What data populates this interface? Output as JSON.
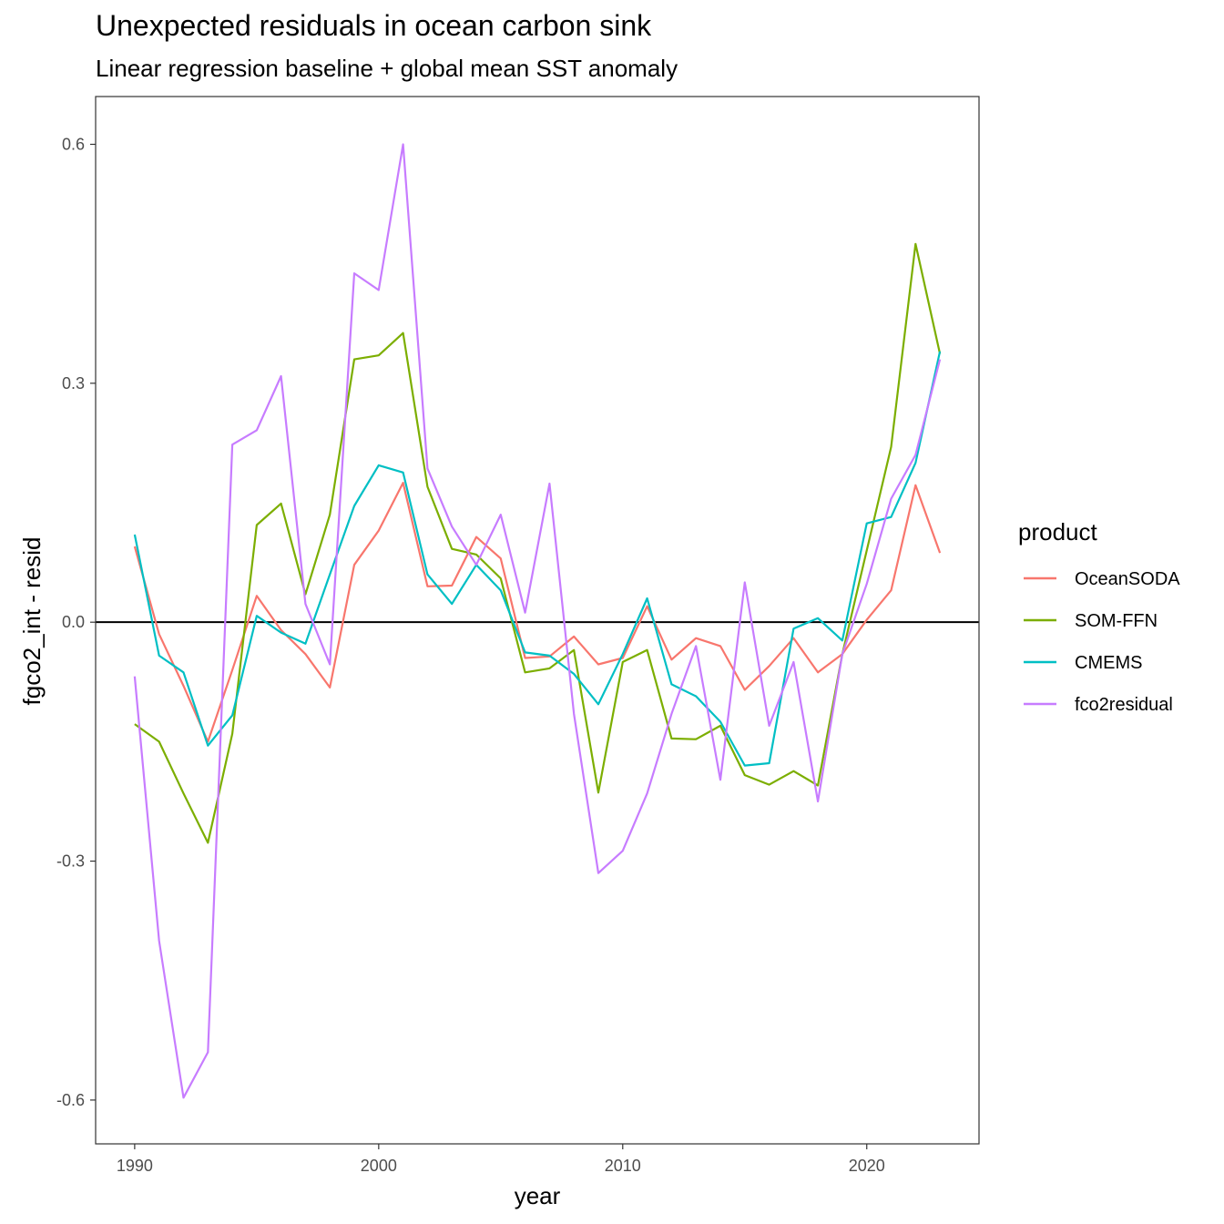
{
  "chart_data": {
    "type": "line",
    "title": "Unexpected residuals in ocean carbon sink",
    "subtitle": "Linear regression baseline + global mean SST anomaly",
    "xlabel": "year",
    "ylabel": "fgco2_int - resid",
    "xlim": [
      1988.4,
      2024.6
    ],
    "ylim": [
      -0.655,
      0.66
    ],
    "x_ticks": [
      1990,
      2000,
      2010,
      2020
    ],
    "y_ticks": [
      0.6,
      0.3,
      0.0,
      -0.3,
      -0.6
    ],
    "y_tick_labels": [
      "0.6",
      "0.3",
      "0.0",
      "-0.3",
      "-0.6"
    ],
    "zero_line": true,
    "grid": false,
    "legend_title": "product",
    "legend_position": "right",
    "x": [
      1990,
      1991,
      1992,
      1993,
      1994,
      1995,
      1996,
      1997,
      1998,
      1999,
      2000,
      2001,
      2002,
      2003,
      2004,
      2005,
      2006,
      2007,
      2008,
      2009,
      2010,
      2011,
      2012,
      2013,
      2014,
      2015,
      2016,
      2017,
      2018,
      2019,
      2020,
      2021,
      2022,
      2023
    ],
    "series": [
      {
        "name": "OceanSODA",
        "color": "#F8766D",
        "values": [
          0.095,
          -0.015,
          -0.08,
          -0.15,
          -0.06,
          0.033,
          -0.01,
          -0.04,
          -0.082,
          0.072,
          0.115,
          0.175,
          0.045,
          0.046,
          0.107,
          0.08,
          -0.045,
          -0.043,
          -0.018,
          -0.053,
          -0.045,
          0.02,
          -0.047,
          -0.02,
          -0.03,
          -0.085,
          -0.055,
          -0.02,
          -0.063,
          -0.04,
          0.003,
          0.04,
          0.172,
          0.087
        ]
      },
      {
        "name": "SOM-FFN",
        "color": "#7CAE00",
        "values": [
          -0.128,
          -0.15,
          -0.215,
          -0.277,
          -0.14,
          0.122,
          0.149,
          0.035,
          0.135,
          0.33,
          0.335,
          0.363,
          0.17,
          0.092,
          0.085,
          0.055,
          -0.063,
          -0.058,
          -0.035,
          -0.214,
          -0.05,
          -0.035,
          -0.146,
          -0.147,
          -0.13,
          -0.192,
          -0.204,
          -0.187,
          -0.205,
          -0.04,
          0.09,
          0.22,
          0.475,
          0.337
        ]
      },
      {
        "name": "CMEMS",
        "color": "#00BFC4",
        "values": [
          0.11,
          -0.042,
          -0.063,
          -0.155,
          -0.117,
          0.008,
          -0.013,
          -0.027,
          0.06,
          0.146,
          0.197,
          0.188,
          0.06,
          0.023,
          0.072,
          0.04,
          -0.038,
          -0.042,
          -0.065,
          -0.103,
          -0.04,
          0.03,
          -0.078,
          -0.093,
          -0.125,
          -0.18,
          -0.177,
          -0.008,
          0.005,
          -0.023,
          0.124,
          0.132,
          0.2,
          0.34
        ]
      },
      {
        "name": "fco2residual",
        "color": "#C77CFF",
        "values": [
          -0.068,
          -0.4,
          -0.597,
          -0.54,
          0.223,
          0.241,
          0.309,
          0.023,
          -0.053,
          0.438,
          0.417,
          0.6,
          0.193,
          0.12,
          0.072,
          0.135,
          0.012,
          0.174,
          -0.115,
          -0.315,
          -0.287,
          -0.215,
          -0.115,
          -0.03,
          -0.198,
          0.05,
          -0.13,
          -0.05,
          -0.225,
          -0.04,
          0.048,
          0.155,
          0.21,
          0.33
        ]
      }
    ]
  }
}
